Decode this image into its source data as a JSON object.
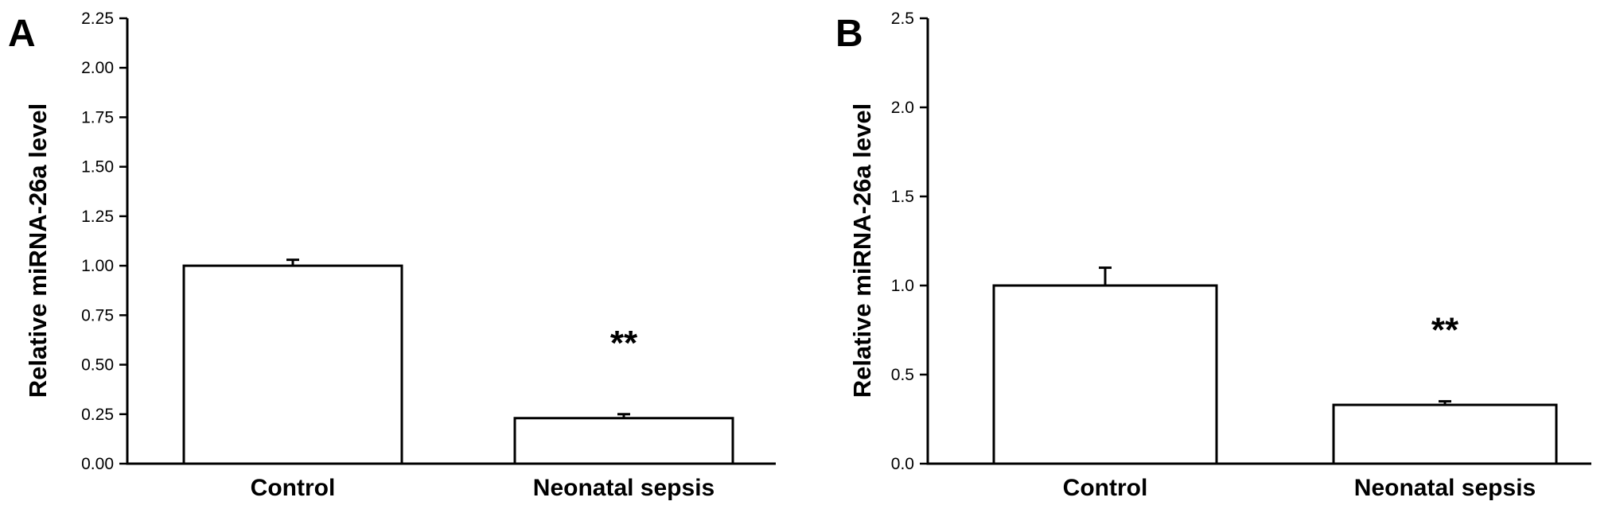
{
  "chart_data": [
    {
      "type": "bar",
      "panel": "A",
      "categories": [
        "Control",
        "Neonatal sepsis"
      ],
      "values": [
        1.0,
        0.23
      ],
      "errors": [
        0.03,
        0.02
      ],
      "significance": [
        "",
        "**"
      ],
      "ylabel": "Relative miRNA-26a level",
      "ylim": [
        0,
        2.25
      ],
      "yticks": [
        "0.00",
        "0.25",
        "0.50",
        "0.75",
        "1.00",
        "1.25",
        "1.50",
        "1.75",
        "2.00",
        "2.25"
      ],
      "grid": false,
      "colors": {
        "bar_fill": "#ffffff",
        "stroke": "#000000"
      }
    },
    {
      "type": "bar",
      "panel": "B",
      "categories": [
        "Control",
        "Neonatal sepsis"
      ],
      "values": [
        1.0,
        0.33
      ],
      "errors": [
        0.1,
        0.02
      ],
      "significance": [
        "",
        "**"
      ],
      "ylabel": "Relative miRNA-26a level",
      "ylim": [
        0,
        2.5
      ],
      "yticks": [
        "0.0",
        "0.5",
        "1.0",
        "1.5",
        "2.0",
        "2.5"
      ],
      "grid": false,
      "colors": {
        "bar_fill": "#ffffff",
        "stroke": "#000000"
      }
    }
  ]
}
